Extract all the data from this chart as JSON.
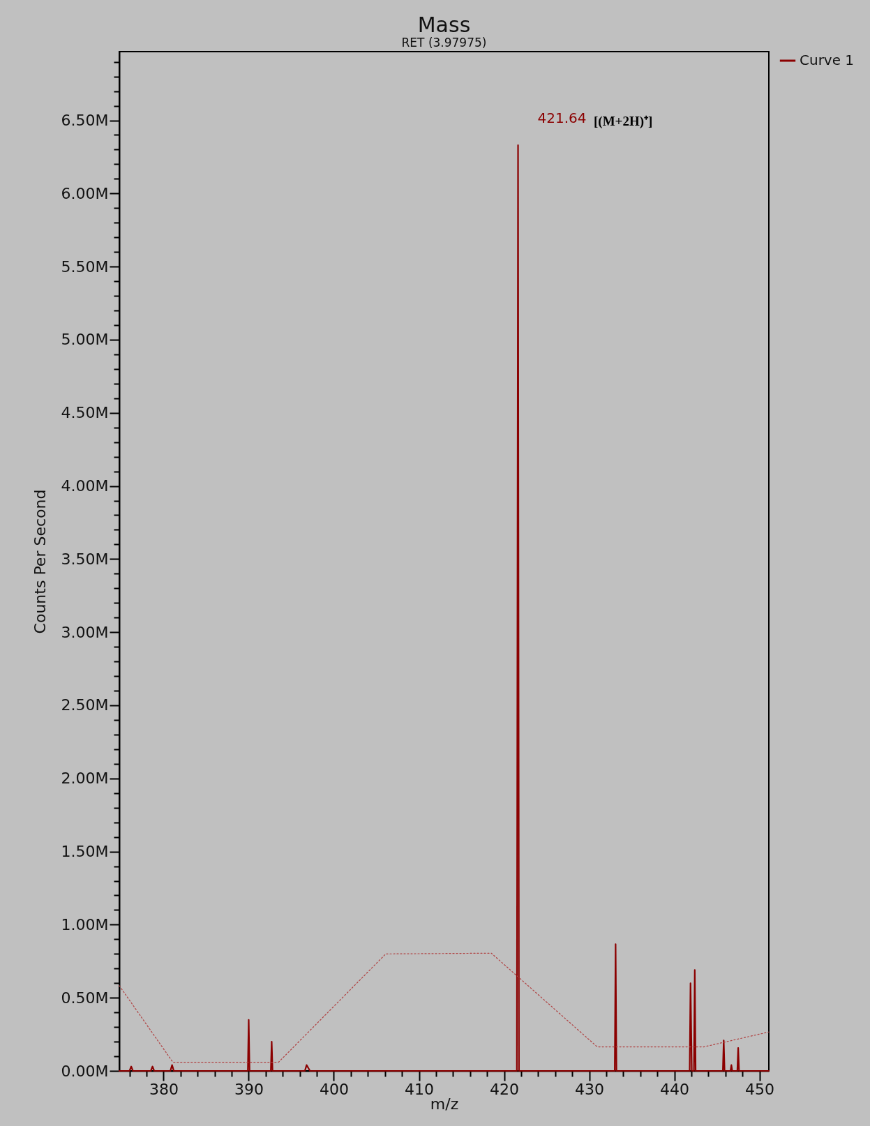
{
  "chart_data": {
    "type": "line",
    "title": "Mass",
    "subtitle": "RET (3.97975)",
    "xlabel": "m/z",
    "ylabel": "Counts Per Second",
    "series": [
      {
        "name": "Curve 1",
        "color": "#8b0000",
        "line_style": "solid",
        "x": [
          374.8,
          376.0,
          376.2,
          376.4,
          378.5,
          378.7,
          378.9,
          380.8,
          381.0,
          381.2,
          389.9,
          390.0,
          390.1,
          392.6,
          392.7,
          392.8,
          396.6,
          396.8,
          397.0,
          397.2,
          421.5,
          421.64,
          421.75,
          433.0,
          433.1,
          433.2,
          441.8,
          441.9,
          442.05,
          442.3,
          442.4,
          442.5,
          445.7,
          445.8,
          445.9,
          446.6,
          446.7,
          446.8,
          447.4,
          447.5,
          447.6,
          451.1
        ],
        "values": [
          0,
          0,
          30000,
          0,
          0,
          30000,
          0,
          0,
          40000,
          0,
          0,
          349000,
          0,
          0,
          200000,
          0,
          0,
          40000,
          20000,
          0,
          0,
          6330000,
          0,
          0,
          867000,
          0,
          0,
          600000,
          0,
          0,
          690000,
          0,
          0,
          208000,
          0,
          0,
          40000,
          0,
          0,
          157000,
          0,
          0
        ]
      },
      {
        "color": "#b04040",
        "line_style": "dotted",
        "x": [
          374.8,
          381.1,
          393.5,
          406.1,
          418.5,
          430.95,
          443.45,
          451.1
        ],
        "values": [
          583000,
          59000,
          59000,
          800000,
          805000,
          164000,
          164000,
          266000
        ]
      }
    ],
    "xlim": [
      374.8,
      451.1
    ],
    "xticks": [
      {
        "value": 376,
        "label": null
      },
      {
        "value": 378,
        "label": null
      },
      380,
      {
        "value": 382,
        "label": null
      },
      {
        "value": 384,
        "label": null
      },
      {
        "value": 386,
        "label": null
      },
      {
        "value": 388,
        "label": null
      },
      390,
      {
        "value": 392,
        "label": null
      },
      {
        "value": 394,
        "label": null
      },
      {
        "value": 396,
        "label": null
      },
      {
        "value": 398,
        "label": null
      },
      400,
      {
        "value": 402,
        "label": null
      },
      {
        "value": 404,
        "label": null
      },
      {
        "value": 406,
        "label": null
      },
      {
        "value": 408,
        "label": null
      },
      410,
      {
        "value": 412,
        "label": null
      },
      {
        "value": 414,
        "label": null
      },
      {
        "value": 416,
        "label": null
      },
      {
        "value": 418,
        "label": null
      },
      420,
      {
        "value": 422,
        "label": null
      },
      {
        "value": 424,
        "label": null
      },
      {
        "value": 426,
        "label": null
      },
      {
        "value": 428,
        "label": null
      },
      430,
      {
        "value": 432,
        "label": null
      },
      {
        "value": 434,
        "label": null
      },
      {
        "value": 436,
        "label": null
      },
      {
        "value": 438,
        "label": null
      },
      440,
      {
        "value": 442,
        "label": null
      },
      {
        "value": 444,
        "label": null
      },
      {
        "value": 446,
        "label": null
      },
      {
        "value": 448,
        "label": null
      },
      450
    ],
    "ylim": [
      0,
      6970000
    ],
    "yticks": [
      {
        "value": 0,
        "label": "0.00M"
      },
      {
        "value": 100000,
        "label": null
      },
      {
        "value": 200000,
        "label": null
      },
      {
        "value": 300000,
        "label": null
      },
      {
        "value": 400000,
        "label": null
      },
      {
        "value": 500000,
        "label": "0.50M"
      },
      {
        "value": 600000,
        "label": null
      },
      {
        "value": 700000,
        "label": null
      },
      {
        "value": 800000,
        "label": null
      },
      {
        "value": 900000,
        "label": null
      },
      {
        "value": 1000000,
        "label": "1.00M"
      },
      {
        "value": 1100000,
        "label": null
      },
      {
        "value": 1200000,
        "label": null
      },
      {
        "value": 1300000,
        "label": null
      },
      {
        "value": 1400000,
        "label": null
      },
      {
        "value": 1500000,
        "label": "1.50M"
      },
      {
        "value": 1600000,
        "label": null
      },
      {
        "value": 1700000,
        "label": null
      },
      {
        "value": 1800000,
        "label": null
      },
      {
        "value": 1900000,
        "label": null
      },
      {
        "value": 2000000,
        "label": "2.00M"
      },
      {
        "value": 2100000,
        "label": null
      },
      {
        "value": 2200000,
        "label": null
      },
      {
        "value": 2300000,
        "label": null
      },
      {
        "value": 2400000,
        "label": null
      },
      {
        "value": 2500000,
        "label": "2.50M"
      },
      {
        "value": 2600000,
        "label": null
      },
      {
        "value": 2700000,
        "label": null
      },
      {
        "value": 2800000,
        "label": null
      },
      {
        "value": 2900000,
        "label": null
      },
      {
        "value": 3000000,
        "label": "3.00M"
      },
      {
        "value": 3100000,
        "label": null
      },
      {
        "value": 3200000,
        "label": null
      },
      {
        "value": 3300000,
        "label": null
      },
      {
        "value": 3400000,
        "label": null
      },
      {
        "value": 3500000,
        "label": "3.50M"
      },
      {
        "value": 3600000,
        "label": null
      },
      {
        "value": 3700000,
        "label": null
      },
      {
        "value": 3800000,
        "label": null
      },
      {
        "value": 3900000,
        "label": null
      },
      {
        "value": 4000000,
        "label": "4.00M"
      },
      {
        "value": 4100000,
        "label": null
      },
      {
        "value": 4200000,
        "label": null
      },
      {
        "value": 4300000,
        "label": null
      },
      {
        "value": 4400000,
        "label": null
      },
      {
        "value": 4500000,
        "label": "4.50M"
      },
      {
        "value": 4600000,
        "label": null
      },
      {
        "value": 4700000,
        "label": null
      },
      {
        "value": 4800000,
        "label": null
      },
      {
        "value": 4900000,
        "label": null
      },
      {
        "value": 5000000,
        "label": "5.00M"
      },
      {
        "value": 5100000,
        "label": null
      },
      {
        "value": 5200000,
        "label": null
      },
      {
        "value": 5300000,
        "label": null
      },
      {
        "value": 5400000,
        "label": null
      },
      {
        "value": 5500000,
        "label": "5.50M"
      },
      {
        "value": 5600000,
        "label": null
      },
      {
        "value": 5700000,
        "label": null
      },
      {
        "value": 5800000,
        "label": null
      },
      {
        "value": 5900000,
        "label": null
      },
      {
        "value": 6000000,
        "label": "6.00M"
      },
      {
        "value": 6100000,
        "label": null
      },
      {
        "value": 6200000,
        "label": null
      },
      {
        "value": 6300000,
        "label": null
      },
      {
        "value": 6400000,
        "label": null
      },
      {
        "value": 6500000,
        "label": "6.50M"
      },
      {
        "value": 6600000,
        "label": null
      },
      {
        "value": 6700000,
        "label": null
      },
      {
        "value": 6800000,
        "label": null
      },
      {
        "value": 6900000,
        "label": null
      }
    ],
    "annotations": [
      {
        "text": "421.64",
        "x": 421.64,
        "y": 6330000
      },
      "[(M+2H)⁺]"
    ],
    "grid": false,
    "legend": "top right",
    "marker": "none"
  }
}
